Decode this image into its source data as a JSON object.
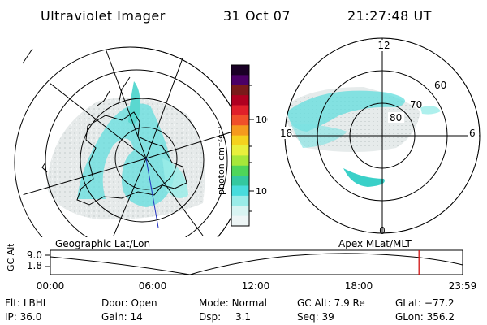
{
  "header": {
    "title": "Ultraviolet Imager",
    "date": "31 Oct 07",
    "time": "21:27:48 UT"
  },
  "colorbar": {
    "label": "photon cm⁻²s⁻¹",
    "ticks": [
      "100",
      "10"
    ],
    "colors": [
      "#1a0026",
      "#4b0066",
      "#7a1a1a",
      "#b00020",
      "#e0202a",
      "#f0502a",
      "#f59a1e",
      "#f5d21e",
      "#e8f03c",
      "#a6e83a",
      "#4fd65a",
      "#34c8a0",
      "#48dcdc",
      "#9aece8",
      "#d8f4f2",
      "#eef6f6"
    ]
  },
  "polar": {
    "lat_labels": [
      "80",
      "70",
      "60"
    ],
    "mlt_labels": {
      "top": "12",
      "left": "18",
      "right": "6",
      "bottom": "0"
    }
  },
  "projections": {
    "left": "Geographic Lat/Lon",
    "right": "Apex MLat/MLT"
  },
  "altitude_plot": {
    "ylabel": "GC Alt",
    "yticks": [
      "9.0",
      "1.8"
    ],
    "xticks": [
      "00:00",
      "06:00",
      "12:00",
      "18:00",
      "23:59"
    ],
    "current_time_hours": 21.46,
    "marker_color": "#d01010"
  },
  "footer": {
    "row1": [
      {
        "label": "Flt:",
        "value": "LBHL"
      },
      {
        "label": "Door:",
        "value": "Open"
      },
      {
        "label": "Mode:",
        "value": "Normal"
      },
      {
        "label": "GC Alt:",
        "value": "7.9 Re"
      },
      {
        "label": "GLat:",
        "value": "−77.2"
      }
    ],
    "row2": [
      {
        "label": "IP:",
        "value": "36.0"
      },
      {
        "label": "Gain:",
        "value": "14"
      },
      {
        "label": "Dsp:",
        "value": "3.1"
      },
      {
        "label": "Seq:",
        "value": "39"
      },
      {
        "label": "GLon:",
        "value": "356.2"
      }
    ]
  }
}
